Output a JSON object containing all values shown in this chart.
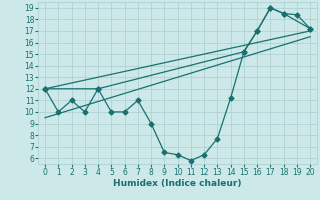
{
  "xlabel": "Humidex (Indice chaleur)",
  "background_color": "#cce8e8",
  "grid_color": "#aacece",
  "line_color": "#1a7070",
  "xlim": [
    -0.5,
    20.5
  ],
  "ylim": [
    5.5,
    19.5
  ],
  "xticks": [
    0,
    1,
    2,
    3,
    4,
    5,
    6,
    7,
    8,
    9,
    10,
    11,
    12,
    13,
    14,
    15,
    16,
    17,
    18,
    19,
    20
  ],
  "yticks": [
    6,
    7,
    8,
    9,
    10,
    11,
    12,
    13,
    14,
    15,
    16,
    17,
    18,
    19
  ],
  "line1_x": [
    0,
    1,
    2,
    3,
    4,
    5,
    6,
    7,
    8,
    9,
    10,
    11,
    12,
    13,
    14,
    15,
    16,
    17,
    18,
    19,
    20
  ],
  "line1_y": [
    12,
    10,
    11,
    10,
    12,
    10,
    10,
    11,
    9,
    6.5,
    6.3,
    5.8,
    6.3,
    7.7,
    11.2,
    15.2,
    17,
    19,
    18.5,
    18.4,
    17.2
  ],
  "line2_x": [
    0,
    4,
    15,
    16,
    17,
    18,
    20
  ],
  "line2_y": [
    12,
    12,
    15.2,
    17,
    19,
    18.5,
    17.2
  ],
  "line3_x": [
    0,
    20
  ],
  "line3_y": [
    12,
    17
  ],
  "line4_x": [
    0,
    20
  ],
  "line4_y": [
    9.5,
    16.5
  ],
  "marker": "D",
  "marker_size": 2.5,
  "line_width": 0.9
}
